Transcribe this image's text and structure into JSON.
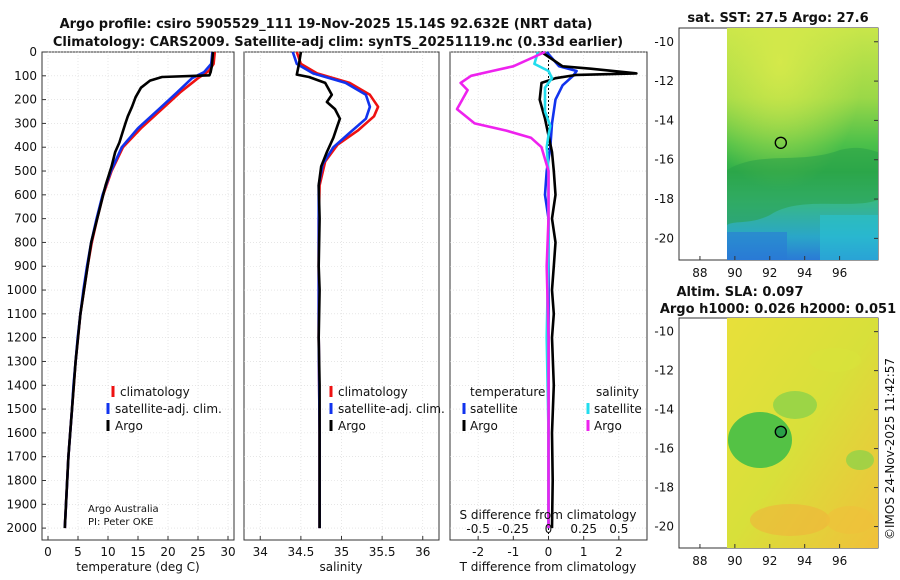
{
  "title": {
    "line1": "Argo profile: csiro 5905529_111 19-Nov-2025 15.14S 92.632E (NRT data)",
    "line2": "Climatology: CARS2009. Satellite-adj clim: synTS_20251119.nc (0.33d earlier)"
  },
  "credits": {
    "line1": "Argo Australia",
    "line2": "PI: Peter OKE"
  },
  "imos_stamp": "©IMOS 24-Nov-2025 11:42:57",
  "colors": {
    "climatology": "#ee1111",
    "satellite": "#1133ee",
    "argo": "#000000",
    "sal_satellite": "#22ddee",
    "sal_argo": "#ee22ee"
  },
  "depth_axis": {
    "ticks": [
      "0",
      "100",
      "200",
      "300",
      "400",
      "500",
      "600",
      "700",
      "800",
      "900",
      "1000",
      "1100",
      "1200",
      "1300",
      "1400",
      "1500",
      "1600",
      "1700",
      "1800",
      "1900",
      "2000"
    ]
  },
  "chart_data": [
    {
      "type": "line",
      "id": "temperature",
      "xlabel": "temperature (deg C)",
      "xlim": [
        -1,
        31
      ],
      "ylim": [
        0,
        2050
      ],
      "xticks": [
        0,
        5,
        10,
        15,
        20,
        25,
        30
      ],
      "xtick_labels": [
        "0",
        "5",
        "10",
        "15",
        "20",
        "25",
        "30"
      ],
      "legend": [
        "climatology",
        "satellite-adj. clim.",
        "Argo"
      ],
      "series": [
        {
          "name": "climatology",
          "points": [
            [
              27.8,
              0
            ],
            [
              27.6,
              50
            ],
            [
              26.8,
              80
            ],
            [
              25,
              110
            ],
            [
              22,
              170
            ],
            [
              19,
              240
            ],
            [
              15.5,
              320
            ],
            [
              12.5,
              400
            ],
            [
              10.6,
              500
            ],
            [
              9.2,
              600
            ],
            [
              8.2,
              700
            ],
            [
              7.3,
              800
            ],
            [
              6.6,
              900
            ],
            [
              6,
              1000
            ],
            [
              5.4,
              1100
            ],
            [
              5,
              1200
            ],
            [
              4.6,
              1300
            ],
            [
              4.3,
              1400
            ],
            [
              4,
              1500
            ],
            [
              3.7,
              1600
            ],
            [
              3.4,
              1700
            ],
            [
              3.2,
              1800
            ],
            [
              3,
              1900
            ],
            [
              2.8,
              2000
            ]
          ]
        },
        {
          "name": "satellite-adj. clim.",
          "points": [
            [
              27.4,
              0
            ],
            [
              27.2,
              50
            ],
            [
              26,
              85
            ],
            [
              24,
              110
            ],
            [
              21.5,
              170
            ],
            [
              18.5,
              240
            ],
            [
              15,
              320
            ],
            [
              12.3,
              400
            ],
            [
              10.5,
              500
            ],
            [
              9.1,
              600
            ],
            [
              8.1,
              700
            ],
            [
              7.2,
              800
            ],
            [
              6.5,
              900
            ],
            [
              5.9,
              1000
            ],
            [
              5.4,
              1100
            ],
            [
              4.95,
              1200
            ],
            [
              4.6,
              1300
            ],
            [
              4.25,
              1400
            ],
            [
              4,
              1500
            ],
            [
              3.7,
              1600
            ],
            [
              3.4,
              1700
            ],
            [
              3.2,
              1800
            ],
            [
              3,
              1900
            ],
            [
              2.8,
              2000
            ]
          ]
        },
        {
          "name": "Argo",
          "points": [
            [
              27.5,
              0
            ],
            [
              27.3,
              60
            ],
            [
              27.1,
              85
            ],
            [
              26.9,
              98
            ],
            [
              19,
              105
            ],
            [
              17,
              120
            ],
            [
              15.5,
              150
            ],
            [
              14.6,
              190
            ],
            [
              14,
              230
            ],
            [
              13.3,
              270
            ],
            [
              12.9,
              300
            ],
            [
              12.4,
              340
            ],
            [
              11.9,
              380
            ],
            [
              11.2,
              420
            ],
            [
              10.6,
              480
            ],
            [
              9.6,
              560
            ],
            [
              8.8,
              640
            ],
            [
              8,
              720
            ],
            [
              7.2,
              800
            ],
            [
              6.6,
              900
            ],
            [
              6,
              1000
            ],
            [
              5.4,
              1100
            ],
            [
              5,
              1200
            ],
            [
              4.6,
              1300
            ],
            [
              4.3,
              1400
            ],
            [
              4,
              1500
            ],
            [
              3.7,
              1600
            ],
            [
              3.4,
              1700
            ],
            [
              3.2,
              1800
            ],
            [
              3,
              1900
            ],
            [
              2.8,
              2000
            ]
          ]
        }
      ]
    },
    {
      "type": "line",
      "id": "salinity",
      "xlabel": "salinity",
      "xlim": [
        33.8,
        36.2
      ],
      "ylim": [
        0,
        2050
      ],
      "xticks": [
        34,
        34.5,
        35,
        35.5,
        36
      ],
      "xtick_labels": [
        "34",
        "34.5",
        "35",
        "35.5",
        "36"
      ],
      "legend": [
        "climatology",
        "satellite-adj. clim.",
        "Argo"
      ],
      "series": [
        {
          "name": "climatology",
          "points": [
            [
              34.45,
              0
            ],
            [
              34.5,
              50
            ],
            [
              34.7,
              90
            ],
            [
              35.1,
              130
            ],
            [
              35.35,
              180
            ],
            [
              35.45,
              230
            ],
            [
              35.4,
              270
            ],
            [
              35.2,
              330
            ],
            [
              34.95,
              390
            ],
            [
              34.8,
              460
            ],
            [
              34.73,
              560
            ],
            [
              34.72,
              700
            ],
            [
              34.72,
              900
            ],
            [
              34.72,
              1200
            ],
            [
              34.73,
              1600
            ],
            [
              34.73,
              2000
            ]
          ]
        },
        {
          "name": "satellite-adj. clim.",
          "points": [
            [
              34.4,
              0
            ],
            [
              34.45,
              50
            ],
            [
              34.65,
              90
            ],
            [
              35.05,
              130
            ],
            [
              35.3,
              180
            ],
            [
              35.35,
              230
            ],
            [
              35.3,
              280
            ],
            [
              35.1,
              340
            ],
            [
              34.9,
              400
            ],
            [
              34.77,
              470
            ],
            [
              34.72,
              560
            ],
            [
              34.72,
              700
            ],
            [
              34.72,
              900
            ],
            [
              34.72,
              1200
            ],
            [
              34.73,
              1600
            ],
            [
              34.73,
              2000
            ]
          ]
        },
        {
          "name": "Argo",
          "points": [
            [
              34.5,
              0
            ],
            [
              34.48,
              45
            ],
            [
              34.45,
              95
            ],
            [
              34.6,
              105
            ],
            [
              34.8,
              130
            ],
            [
              34.88,
              180
            ],
            [
              34.82,
              210
            ],
            [
              34.92,
              240
            ],
            [
              34.98,
              280
            ],
            [
              34.95,
              310
            ],
            [
              34.9,
              360
            ],
            [
              34.82,
              420
            ],
            [
              34.75,
              480
            ],
            [
              34.72,
              560
            ],
            [
              34.73,
              700
            ],
            [
              34.72,
              900
            ],
            [
              34.73,
              1000
            ],
            [
              34.72,
              1200
            ],
            [
              34.73,
              1400
            ],
            [
              34.73,
              1600
            ],
            [
              34.73,
              1800
            ],
            [
              34.73,
              2000
            ]
          ]
        }
      ]
    },
    {
      "type": "line",
      "id": "difference",
      "xlabel": "T difference from climatology",
      "xlim": [
        -2.8,
        2.8
      ],
      "ylim": [
        0,
        2050
      ],
      "xticks": [
        -2,
        -1,
        0,
        1,
        2
      ],
      "xtick_labels": [
        "-2",
        "-1",
        "0",
        "1",
        "2"
      ],
      "s_axis": {
        "label": "S difference from climatology",
        "ticks": [
          -0.5,
          -0.25,
          0,
          0.25,
          0.5
        ],
        "tick_labels": [
          "-0.5",
          "-0.25",
          "0",
          "0.25",
          "0.5"
        ],
        "scale": 4
      },
      "legend_left": {
        "title": "temperature",
        "items": [
          "satellite",
          "Argo"
        ]
      },
      "legend_right": {
        "title": "salinity",
        "items": [
          "satellite",
          "Argo"
        ]
      },
      "series": [
        {
          "name": "T satellite",
          "points": [
            [
              -0.05,
              0
            ],
            [
              0.3,
              60
            ],
            [
              0.8,
              80
            ],
            [
              0.7,
              100
            ],
            [
              0.4,
              140
            ],
            [
              0.2,
              200
            ],
            [
              0.1,
              300
            ],
            [
              0.05,
              400
            ],
            [
              -0.05,
              500
            ],
            [
              -0.1,
              600
            ],
            [
              0,
              700
            ],
            [
              0,
              900
            ],
            [
              0,
              1200
            ],
            [
              0,
              1600
            ],
            [
              0,
              2000
            ]
          ]
        },
        {
          "name": "T Argo",
          "points": [
            [
              -0.2,
              0
            ],
            [
              0.4,
              60
            ],
            [
              1.2,
              70
            ],
            [
              2.5,
              90
            ],
            [
              0.8,
              96
            ],
            [
              0.2,
              110
            ],
            [
              -0.2,
              130
            ],
            [
              -0.25,
              200
            ],
            [
              -0.1,
              280
            ],
            [
              0,
              350
            ],
            [
              0.1,
              420
            ],
            [
              0.15,
              500
            ],
            [
              0.2,
              600
            ],
            [
              0.1,
              700
            ],
            [
              0.2,
              800
            ],
            [
              0.15,
              900
            ],
            [
              0.1,
              1000
            ],
            [
              0.15,
              1100
            ],
            [
              0.1,
              1200
            ],
            [
              0.15,
              1400
            ],
            [
              0.1,
              1600
            ],
            [
              0.12,
              1800
            ],
            [
              0.1,
              2000
            ]
          ]
        },
        {
          "name": "S satellite",
          "points": [
            [
              -0.3,
              0
            ],
            [
              -0.4,
              50
            ],
            [
              0,
              80
            ],
            [
              0.1,
              110
            ],
            [
              -0.1,
              150
            ],
            [
              -0.1,
              250
            ],
            [
              0.05,
              310
            ],
            [
              0,
              350
            ],
            [
              -0.05,
              400
            ],
            [
              0,
              500
            ],
            [
              0,
              800
            ],
            [
              -0.05,
              1200
            ],
            [
              0,
              1600
            ],
            [
              0,
              2000
            ]
          ]
        },
        {
          "name": "S Argo",
          "points": [
            [
              -0.1,
              0
            ],
            [
              -1,
              60
            ],
            [
              -1.6,
              80
            ],
            [
              -2.2,
              100
            ],
            [
              -2.5,
              130
            ],
            [
              -2.3,
              160
            ],
            [
              -2.6,
              240
            ],
            [
              -2.1,
              300
            ],
            [
              -1.2,
              330
            ],
            [
              -0.5,
              360
            ],
            [
              -0.2,
              400
            ],
            [
              0,
              500
            ],
            [
              0,
              700
            ],
            [
              -0.05,
              900
            ],
            [
              0,
              1200
            ],
            [
              0,
              1600
            ],
            [
              0,
              2000
            ]
          ]
        }
      ]
    },
    {
      "type": "heatmap",
      "id": "sst_map",
      "title": "sat. SST: 27.5 Argo: 27.6",
      "xlim": [
        86.8,
        98.2
      ],
      "ylim": [
        -21.1,
        -9.3
      ],
      "xticks": [
        88,
        90,
        92,
        94,
        96
      ],
      "xtick_labels": [
        "88",
        "90",
        "92",
        "94",
        "96"
      ],
      "yticks": [
        -10,
        -12,
        -14,
        -16,
        -18,
        -20
      ],
      "ytick_labels": [
        "-10",
        "-12",
        "-14",
        "-16",
        "-18",
        "-20"
      ],
      "argo_position": [
        92.632,
        -15.14
      ],
      "color_scale": "SST field, warm (yellow) north, cool (blue) south-west"
    },
    {
      "type": "heatmap",
      "id": "sla_map",
      "title_line1": "Altim. SLA: 0.097",
      "title_line2": "Argo h1000: 0.026 h2000: 0.051",
      "xlim": [
        86.8,
        98.2
      ],
      "ylim": [
        -21.1,
        -9.3
      ],
      "xticks": [
        88,
        90,
        92,
        94,
        96
      ],
      "xtick_labels": [
        "88",
        "90",
        "92",
        "94",
        "96"
      ],
      "yticks": [
        -10,
        -12,
        -14,
        -16,
        -18,
        -20
      ],
      "ytick_labels": [
        "-10",
        "-12",
        "-14",
        "-16",
        "-18",
        "-20"
      ],
      "argo_position": [
        92.632,
        -15.14
      ],
      "color_scale": "sea level anomaly, yellow/orange high, green low"
    }
  ]
}
